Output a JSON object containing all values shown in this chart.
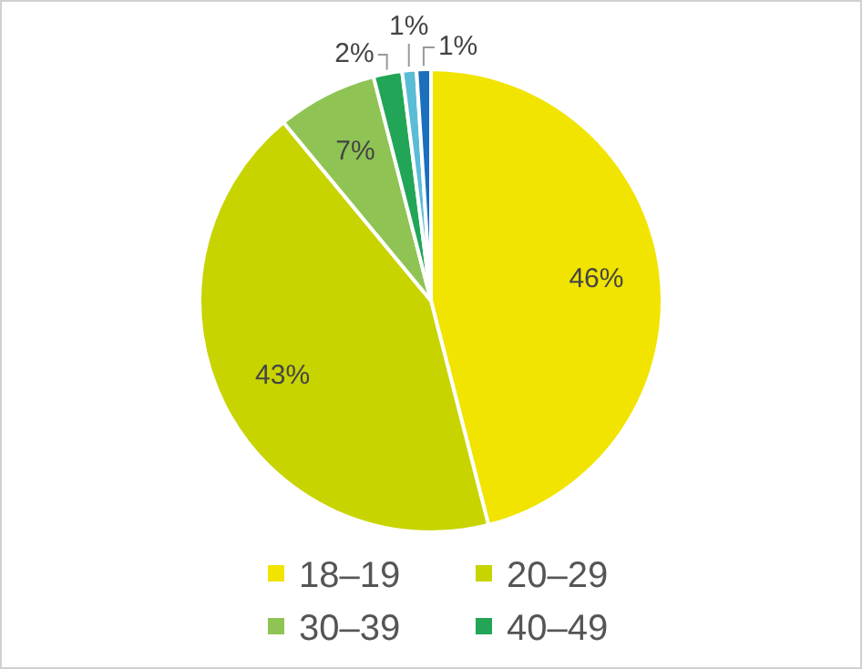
{
  "chart_data": {
    "type": "pie",
    "categories": [
      "18–19",
      "20–29",
      "30–39",
      "40–49",
      null,
      null
    ],
    "values": [
      46,
      43,
      7,
      2,
      1,
      1
    ],
    "colors": [
      "#f0e400",
      "#c8d400",
      "#8fc454",
      "#22a556",
      "#5bbcd6",
      "#1b6fbd"
    ],
    "value_labels": [
      "46%",
      "43%",
      "7%",
      "2%",
      "1%",
      "1%"
    ],
    "legend": "bottom"
  }
}
